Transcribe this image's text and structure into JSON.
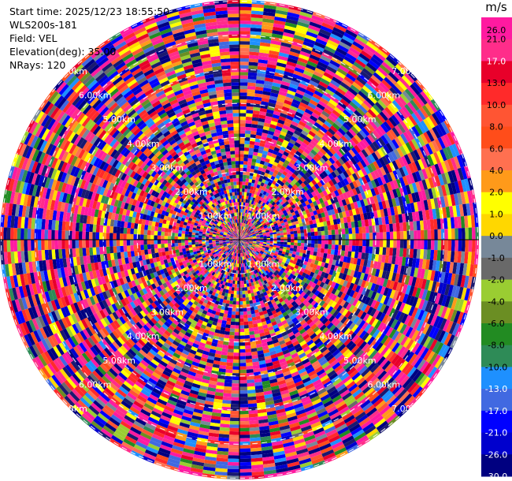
{
  "header": {
    "start_time": "Start time: 2025/12/23 18:55:50",
    "instrument": "WLS200s-181",
    "field": "Field: VEL",
    "elevation": "Elevation(deg): 35.00",
    "nrays": "NRays: 120"
  },
  "colorbar": {
    "unit": "m/s",
    "levels": [
      "26.0",
      "21.0",
      "17.0",
      "13.0",
      "10.0",
      "8.0",
      "6.0",
      "4.0",
      "2.0",
      "1.0",
      "0.0",
      "-1.0",
      "-2.0",
      "-4.0",
      "-6.0",
      "-8.0",
      "-10.0",
      "-13.0",
      "-17.0",
      "-21.0",
      "-26.0",
      "-30.0"
    ],
    "colors": [
      "#ff1aa0",
      "#ff2d8a",
      "#e8002a",
      "#ff2a2a",
      "#ff5533",
      "#ff4d1a",
      "#ff7050",
      "#ff9a1a",
      "#ffff00",
      "#ffd700",
      "#778899",
      "#696969",
      "#9acd32",
      "#6b8e23",
      "#228b22",
      "#2e8b57",
      "#1e90ff",
      "#4169e1",
      "#0000ff",
      "#0000cd",
      "#000080",
      "#191970"
    ]
  },
  "chart_data": {
    "type": "heatmap",
    "subtype": "ppi-polar",
    "field": "VEL",
    "unit": "m/s",
    "nrays": 120,
    "elevation_deg": 35.0,
    "range_rings_km": [
      1.0,
      2.0,
      3.0,
      4.0,
      5.0,
      6.0,
      7.0
    ],
    "range_labels": [
      "1.00km",
      "2.00km",
      "3.00km",
      "4.00km",
      "5.00km",
      "6.00km",
      "7.00km"
    ],
    "max_range_km": 7.0,
    "color_levels": [
      26.0,
      21.0,
      17.0,
      13.0,
      10.0,
      8.0,
      6.0,
      4.0,
      2.0,
      1.0,
      0.0,
      -1.0,
      -2.0,
      -4.0,
      -6.0,
      -8.0,
      -10.0,
      -13.0,
      -17.0,
      -21.0,
      -26.0,
      -30.0
    ],
    "value_range": [
      -30.0,
      26.0
    ],
    "note_values": "velocity bins appear random; gates rendered as noise"
  }
}
